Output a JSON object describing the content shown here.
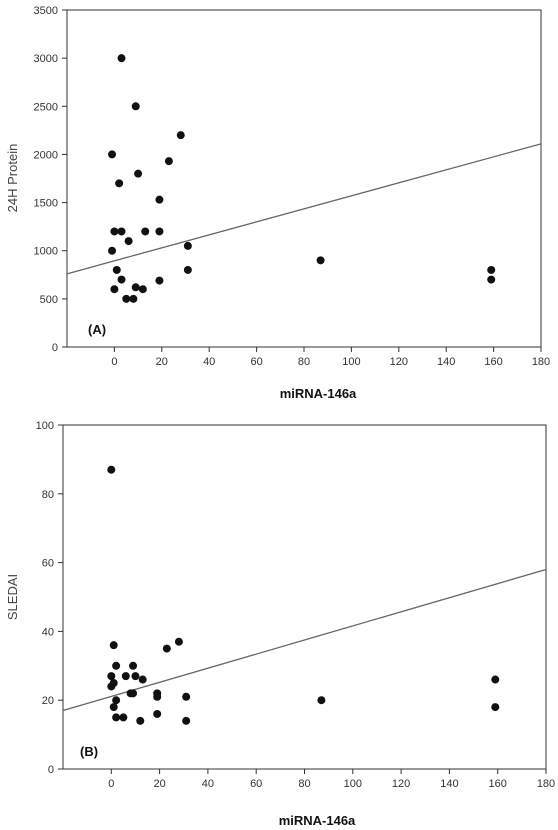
{
  "chart_data": [
    {
      "type": "scatter",
      "panel_label": "(A)",
      "xlabel": "miRNA-146a",
      "ylabel": "24H Protein",
      "xlim": [
        -20,
        180
      ],
      "ylim": [
        0,
        3500
      ],
      "xticks": [
        0,
        20,
        40,
        60,
        80,
        100,
        120,
        140,
        160,
        180
      ],
      "yticks": [
        0,
        500,
        1000,
        1500,
        2000,
        2500,
        3000,
        3500
      ],
      "grid": false,
      "points": [
        {
          "x": 3,
          "y": 3000
        },
        {
          "x": 9,
          "y": 2500
        },
        {
          "x": 28,
          "y": 2200
        },
        {
          "x": -1,
          "y": 2000
        },
        {
          "x": 23,
          "y": 1930
        },
        {
          "x": 10,
          "y": 1800
        },
        {
          "x": 2,
          "y": 1700
        },
        {
          "x": 19,
          "y": 1530
        },
        {
          "x": 0,
          "y": 1200
        },
        {
          "x": 3,
          "y": 1200
        },
        {
          "x": 13,
          "y": 1200
        },
        {
          "x": 19,
          "y": 1200
        },
        {
          "x": 6,
          "y": 1100
        },
        {
          "x": 31,
          "y": 1050
        },
        {
          "x": -1,
          "y": 1000
        },
        {
          "x": 1,
          "y": 800
        },
        {
          "x": 31,
          "y": 800
        },
        {
          "x": 3,
          "y": 700
        },
        {
          "x": 19,
          "y": 690
        },
        {
          "x": 9,
          "y": 620
        },
        {
          "x": 0,
          "y": 600
        },
        {
          "x": 12,
          "y": 600
        },
        {
          "x": 5,
          "y": 500
        },
        {
          "x": 8,
          "y": 500
        },
        {
          "x": 87,
          "y": 900
        },
        {
          "x": 159,
          "y": 800
        },
        {
          "x": 159,
          "y": 700
        }
      ],
      "fit_line": {
        "x": [
          -20,
          180
        ],
        "y": [
          760,
          2110
        ]
      }
    },
    {
      "type": "scatter",
      "panel_label": "(B)",
      "xlabel": "miRNA-146a",
      "ylabel": "SLEDAI",
      "xlim": [
        -20,
        180
      ],
      "ylim": [
        0,
        100
      ],
      "xticks": [
        0,
        20,
        40,
        60,
        80,
        100,
        120,
        140,
        160,
        180
      ],
      "yticks": [
        0,
        20,
        40,
        60,
        80,
        100
      ],
      "grid": false,
      "points": [
        {
          "x": 0,
          "y": 87
        },
        {
          "x": 28,
          "y": 37
        },
        {
          "x": 1,
          "y": 36
        },
        {
          "x": 23,
          "y": 35
        },
        {
          "x": 2,
          "y": 30
        },
        {
          "x": 9,
          "y": 30
        },
        {
          "x": 0,
          "y": 27
        },
        {
          "x": 6,
          "y": 27
        },
        {
          "x": 10,
          "y": 27
        },
        {
          "x": 1,
          "y": 25
        },
        {
          "x": 13,
          "y": 26
        },
        {
          "x": 0,
          "y": 24
        },
        {
          "x": 8,
          "y": 22
        },
        {
          "x": 19,
          "y": 22
        },
        {
          "x": 9,
          "y": 22
        },
        {
          "x": 19,
          "y": 21
        },
        {
          "x": 31,
          "y": 21
        },
        {
          "x": 2,
          "y": 20
        },
        {
          "x": 87,
          "y": 20
        },
        {
          "x": 1,
          "y": 18
        },
        {
          "x": 19,
          "y": 16
        },
        {
          "x": 2,
          "y": 15
        },
        {
          "x": 5,
          "y": 15
        },
        {
          "x": 12,
          "y": 14
        },
        {
          "x": 31,
          "y": 14
        },
        {
          "x": 159,
          "y": 26
        },
        {
          "x": 159,
          "y": 18
        }
      ],
      "fit_line": {
        "x": [
          -20,
          180
        ],
        "y": [
          17,
          58
        ]
      }
    }
  ]
}
